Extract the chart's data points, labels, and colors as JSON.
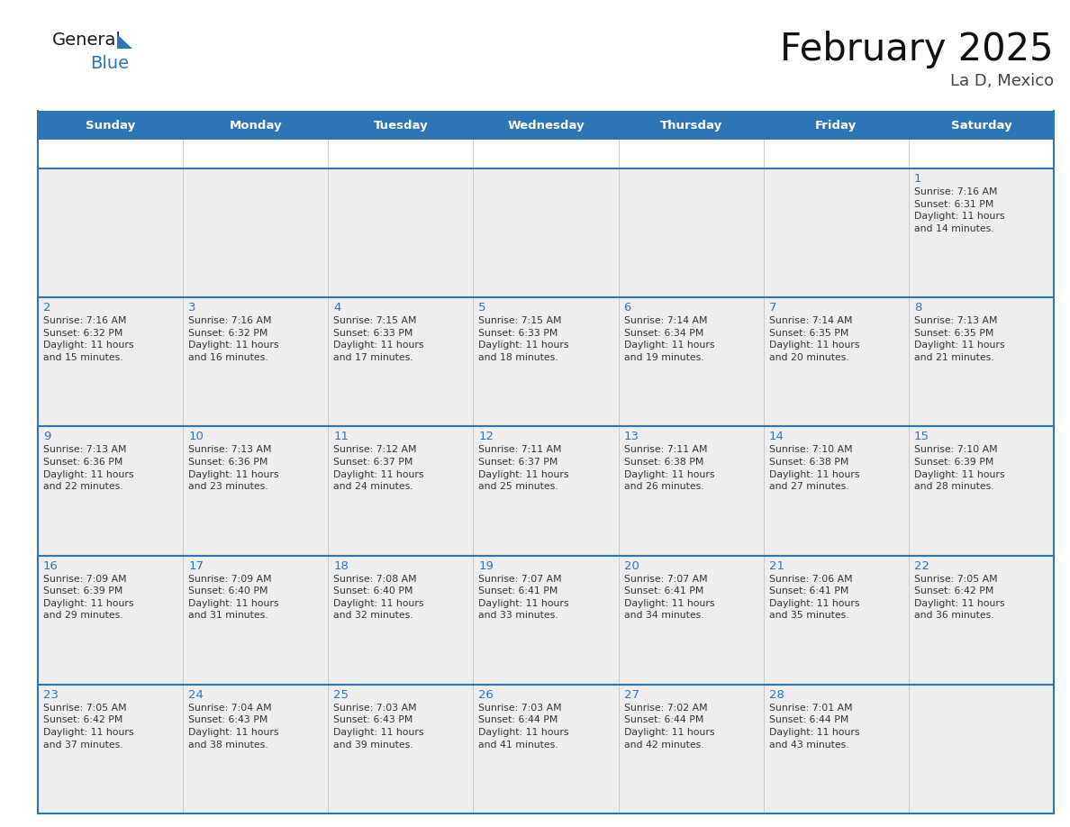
{
  "title": "February 2025",
  "subtitle": "La D, Mexico",
  "header_bg": "#2E75B6",
  "header_text_color": "#FFFFFF",
  "cell_bg": "#EEEEEE",
  "border_color": "#2E75B6",
  "text_color": "#333333",
  "day_number_color": "#2E75B6",
  "days_of_week": [
    "Sunday",
    "Monday",
    "Tuesday",
    "Wednesday",
    "Thursday",
    "Friday",
    "Saturday"
  ],
  "weeks": [
    [
      {
        "day": "",
        "info": ""
      },
      {
        "day": "",
        "info": ""
      },
      {
        "day": "",
        "info": ""
      },
      {
        "day": "",
        "info": ""
      },
      {
        "day": "",
        "info": ""
      },
      {
        "day": "",
        "info": ""
      },
      {
        "day": "1",
        "info": "Sunrise: 7:16 AM\nSunset: 6:31 PM\nDaylight: 11 hours\nand 14 minutes."
      }
    ],
    [
      {
        "day": "2",
        "info": "Sunrise: 7:16 AM\nSunset: 6:32 PM\nDaylight: 11 hours\nand 15 minutes."
      },
      {
        "day": "3",
        "info": "Sunrise: 7:16 AM\nSunset: 6:32 PM\nDaylight: 11 hours\nand 16 minutes."
      },
      {
        "day": "4",
        "info": "Sunrise: 7:15 AM\nSunset: 6:33 PM\nDaylight: 11 hours\nand 17 minutes."
      },
      {
        "day": "5",
        "info": "Sunrise: 7:15 AM\nSunset: 6:33 PM\nDaylight: 11 hours\nand 18 minutes."
      },
      {
        "day": "6",
        "info": "Sunrise: 7:14 AM\nSunset: 6:34 PM\nDaylight: 11 hours\nand 19 minutes."
      },
      {
        "day": "7",
        "info": "Sunrise: 7:14 AM\nSunset: 6:35 PM\nDaylight: 11 hours\nand 20 minutes."
      },
      {
        "day": "8",
        "info": "Sunrise: 7:13 AM\nSunset: 6:35 PM\nDaylight: 11 hours\nand 21 minutes."
      }
    ],
    [
      {
        "day": "9",
        "info": "Sunrise: 7:13 AM\nSunset: 6:36 PM\nDaylight: 11 hours\nand 22 minutes."
      },
      {
        "day": "10",
        "info": "Sunrise: 7:13 AM\nSunset: 6:36 PM\nDaylight: 11 hours\nand 23 minutes."
      },
      {
        "day": "11",
        "info": "Sunrise: 7:12 AM\nSunset: 6:37 PM\nDaylight: 11 hours\nand 24 minutes."
      },
      {
        "day": "12",
        "info": "Sunrise: 7:11 AM\nSunset: 6:37 PM\nDaylight: 11 hours\nand 25 minutes."
      },
      {
        "day": "13",
        "info": "Sunrise: 7:11 AM\nSunset: 6:38 PM\nDaylight: 11 hours\nand 26 minutes."
      },
      {
        "day": "14",
        "info": "Sunrise: 7:10 AM\nSunset: 6:38 PM\nDaylight: 11 hours\nand 27 minutes."
      },
      {
        "day": "15",
        "info": "Sunrise: 7:10 AM\nSunset: 6:39 PM\nDaylight: 11 hours\nand 28 minutes."
      }
    ],
    [
      {
        "day": "16",
        "info": "Sunrise: 7:09 AM\nSunset: 6:39 PM\nDaylight: 11 hours\nand 29 minutes."
      },
      {
        "day": "17",
        "info": "Sunrise: 7:09 AM\nSunset: 6:40 PM\nDaylight: 11 hours\nand 31 minutes."
      },
      {
        "day": "18",
        "info": "Sunrise: 7:08 AM\nSunset: 6:40 PM\nDaylight: 11 hours\nand 32 minutes."
      },
      {
        "day": "19",
        "info": "Sunrise: 7:07 AM\nSunset: 6:41 PM\nDaylight: 11 hours\nand 33 minutes."
      },
      {
        "day": "20",
        "info": "Sunrise: 7:07 AM\nSunset: 6:41 PM\nDaylight: 11 hours\nand 34 minutes."
      },
      {
        "day": "21",
        "info": "Sunrise: 7:06 AM\nSunset: 6:41 PM\nDaylight: 11 hours\nand 35 minutes."
      },
      {
        "day": "22",
        "info": "Sunrise: 7:05 AM\nSunset: 6:42 PM\nDaylight: 11 hours\nand 36 minutes."
      }
    ],
    [
      {
        "day": "23",
        "info": "Sunrise: 7:05 AM\nSunset: 6:42 PM\nDaylight: 11 hours\nand 37 minutes."
      },
      {
        "day": "24",
        "info": "Sunrise: 7:04 AM\nSunset: 6:43 PM\nDaylight: 11 hours\nand 38 minutes."
      },
      {
        "day": "25",
        "info": "Sunrise: 7:03 AM\nSunset: 6:43 PM\nDaylight: 11 hours\nand 39 minutes."
      },
      {
        "day": "26",
        "info": "Sunrise: 7:03 AM\nSunset: 6:44 PM\nDaylight: 11 hours\nand 41 minutes."
      },
      {
        "day": "27",
        "info": "Sunrise: 7:02 AM\nSunset: 6:44 PM\nDaylight: 11 hours\nand 42 minutes."
      },
      {
        "day": "28",
        "info": "Sunrise: 7:01 AM\nSunset: 6:44 PM\nDaylight: 11 hours\nand 43 minutes."
      },
      {
        "day": "",
        "info": ""
      }
    ]
  ],
  "logo_general_color": "#1a1a1a",
  "logo_blue_color": "#2E75B6",
  "fig_width": 11.88,
  "fig_height": 9.18,
  "dpi": 100
}
